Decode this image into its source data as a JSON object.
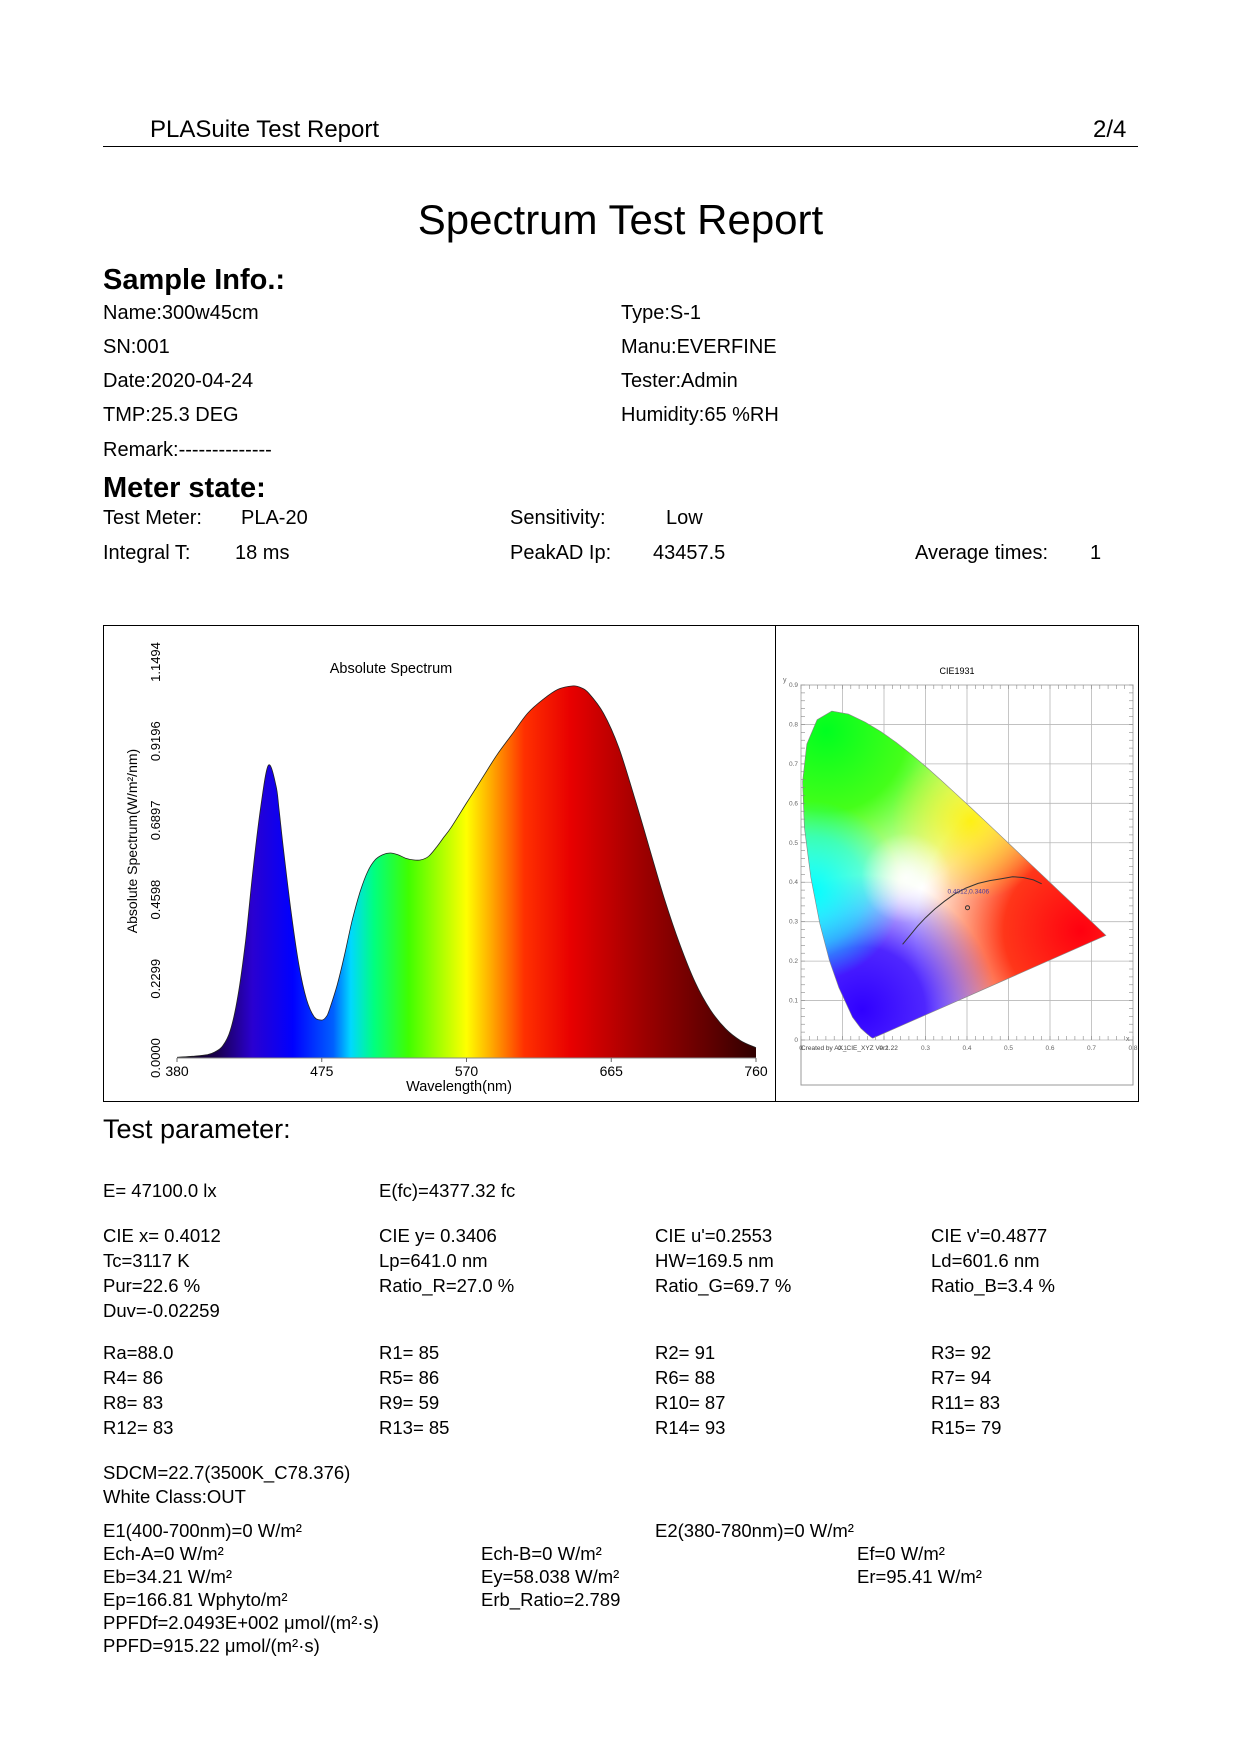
{
  "header": {
    "title": "PLASuite Test Report",
    "page": "2/4"
  },
  "report_title": "Spectrum Test Report",
  "sample_info": {
    "heading": "Sample Info.:",
    "name": "Name:300w45cm",
    "type": "Type:S-1",
    "sn": "SN:001",
    "manu": "Manu:EVERFINE",
    "date": "Date:2020-04-24",
    "tester": "Tester:Admin",
    "tmp": "TMP:25.3 DEG",
    "humidity": "Humidity:65 %RH",
    "remark": "Remark:--------------"
  },
  "meter_state": {
    "heading": "Meter state:",
    "test_meter_label": "Test Meter:",
    "test_meter_value": "PLA-20",
    "sensitivity_label": "Sensitivity:",
    "sensitivity_value": "Low",
    "integral_label": "Integral T:",
    "integral_value": "18 ms",
    "peakad_label": "PeakAD Ip:",
    "peakad_value": "43457.5",
    "avg_label": "Average times:",
    "avg_value": "1"
  },
  "chart_data": [
    {
      "type": "area",
      "title": "Absolute Spectrum",
      "xlabel": "Wavelength(nm)",
      "ylabel": "Absolute Spectrum(W/m²/nm)",
      "x_ticks": [
        "380",
        "475",
        "570",
        "665",
        "760"
      ],
      "y_ticks": [
        "0.0000",
        "0.2299",
        "0.4598",
        "0.6897",
        "0.9196",
        "1.1494"
      ],
      "xlim": [
        380,
        760
      ],
      "ylim": [
        0,
        1.1494
      ],
      "x": [
        380,
        390,
        400,
        405,
        410,
        415,
        420,
        425,
        430,
        435,
        440,
        445,
        447,
        450,
        455,
        460,
        465,
        470,
        475,
        478,
        480,
        485,
        490,
        495,
        500,
        505,
        510,
        515,
        520,
        525,
        530,
        535,
        540,
        545,
        550,
        555,
        560,
        570,
        580,
        590,
        600,
        610,
        620,
        630,
        640,
        645,
        650,
        660,
        670,
        680,
        690,
        700,
        710,
        720,
        730,
        740,
        750,
        760
      ],
      "values": [
        0.002,
        0.005,
        0.01,
        0.018,
        0.035,
        0.08,
        0.18,
        0.34,
        0.55,
        0.73,
        0.85,
        0.79,
        0.72,
        0.6,
        0.42,
        0.27,
        0.17,
        0.12,
        0.11,
        0.12,
        0.14,
        0.21,
        0.3,
        0.4,
        0.48,
        0.54,
        0.575,
        0.59,
        0.595,
        0.59,
        0.58,
        0.575,
        0.575,
        0.585,
        0.61,
        0.64,
        0.67,
        0.74,
        0.81,
        0.88,
        0.94,
        1.0,
        1.04,
        1.07,
        1.08,
        1.075,
        1.06,
        1.0,
        0.9,
        0.76,
        0.61,
        0.46,
        0.33,
        0.22,
        0.14,
        0.085,
        0.05,
        0.03
      ]
    },
    {
      "type": "scatter",
      "title": "CIE1931",
      "xlabel": "x",
      "ylabel": "y",
      "x_ticks": [
        "0",
        "0.1",
        "0.2",
        "0.3",
        "0.4",
        "0.5",
        "0.6",
        "0.7",
        "0.8"
      ],
      "y_ticks": [
        "0",
        "0.1",
        "0.2",
        "0.3",
        "0.4",
        "0.5",
        "0.6",
        "0.7",
        "0.8",
        "0.9"
      ],
      "xlim": [
        0,
        0.8
      ],
      "ylim": [
        0,
        0.9
      ],
      "point": {
        "x": 0.4012,
        "y": 0.3406
      },
      "point_label": "0.4012,0.3406",
      "footer": "Created by AX_CIE_XYZ Ver1.22"
    }
  ],
  "test_parameter": {
    "heading": "Test parameter:",
    "e": "E= 47100.0 lx",
    "efc": "E(fc)=4377.32 fc",
    "cie_x": "CIE x= 0.4012",
    "cie_y": "CIE y= 0.3406",
    "cie_u": "CIE u'=0.2553",
    "cie_v": "CIE v'=0.4877",
    "tc": "Tc=3117 K",
    "lp": "Lp=641.0 nm",
    "hw": "HW=169.5 nm",
    "ld": "Ld=601.6 nm",
    "pur": "Pur=22.6 %",
    "ratio_r": "Ratio_R=27.0 %",
    "ratio_g": "Ratio_G=69.7 %",
    "ratio_b": "Ratio_B=3.4 %",
    "duv": "Duv=-0.02259",
    "ra": "Ra=88.0",
    "r1": "R1= 85",
    "r2": "R2= 91",
    "r3": "R3= 92",
    "r4": "R4= 86",
    "r5": "R5= 86",
    "r6": "R6= 88",
    "r7": "R7= 94",
    "r8": "R8= 83",
    "r9": "R9= 59",
    "r10": "R10= 87",
    "r11": "R11= 83",
    "r12": "R12= 83",
    "r13": "R13= 85",
    "r14": "R14= 93",
    "r15": "R15= 79",
    "sdcm": "SDCM=22.7(3500K_C78.376)",
    "white_class": "White Class:OUT",
    "e1": "E1(400-700nm)=0 W/m²",
    "e2": "E2(380-780nm)=0 W/m²",
    "ech_a": "Ech-A=0 W/m²",
    "ech_b": "Ech-B=0 W/m²",
    "ef": "Ef=0 W/m²",
    "eb": "Eb=34.21 W/m²",
    "ey": "Ey=58.038 W/m²",
    "er": "Er=95.41 W/m²",
    "ep": "Ep=166.81 Wphyto/m²",
    "erb": "Erb_Ratio=2.789",
    "ppfdf": "PPFDf=2.0493E+002 μmol/(m²·s)",
    "ppfd": "PPFD=915.22 μmol/(m²·s)"
  }
}
